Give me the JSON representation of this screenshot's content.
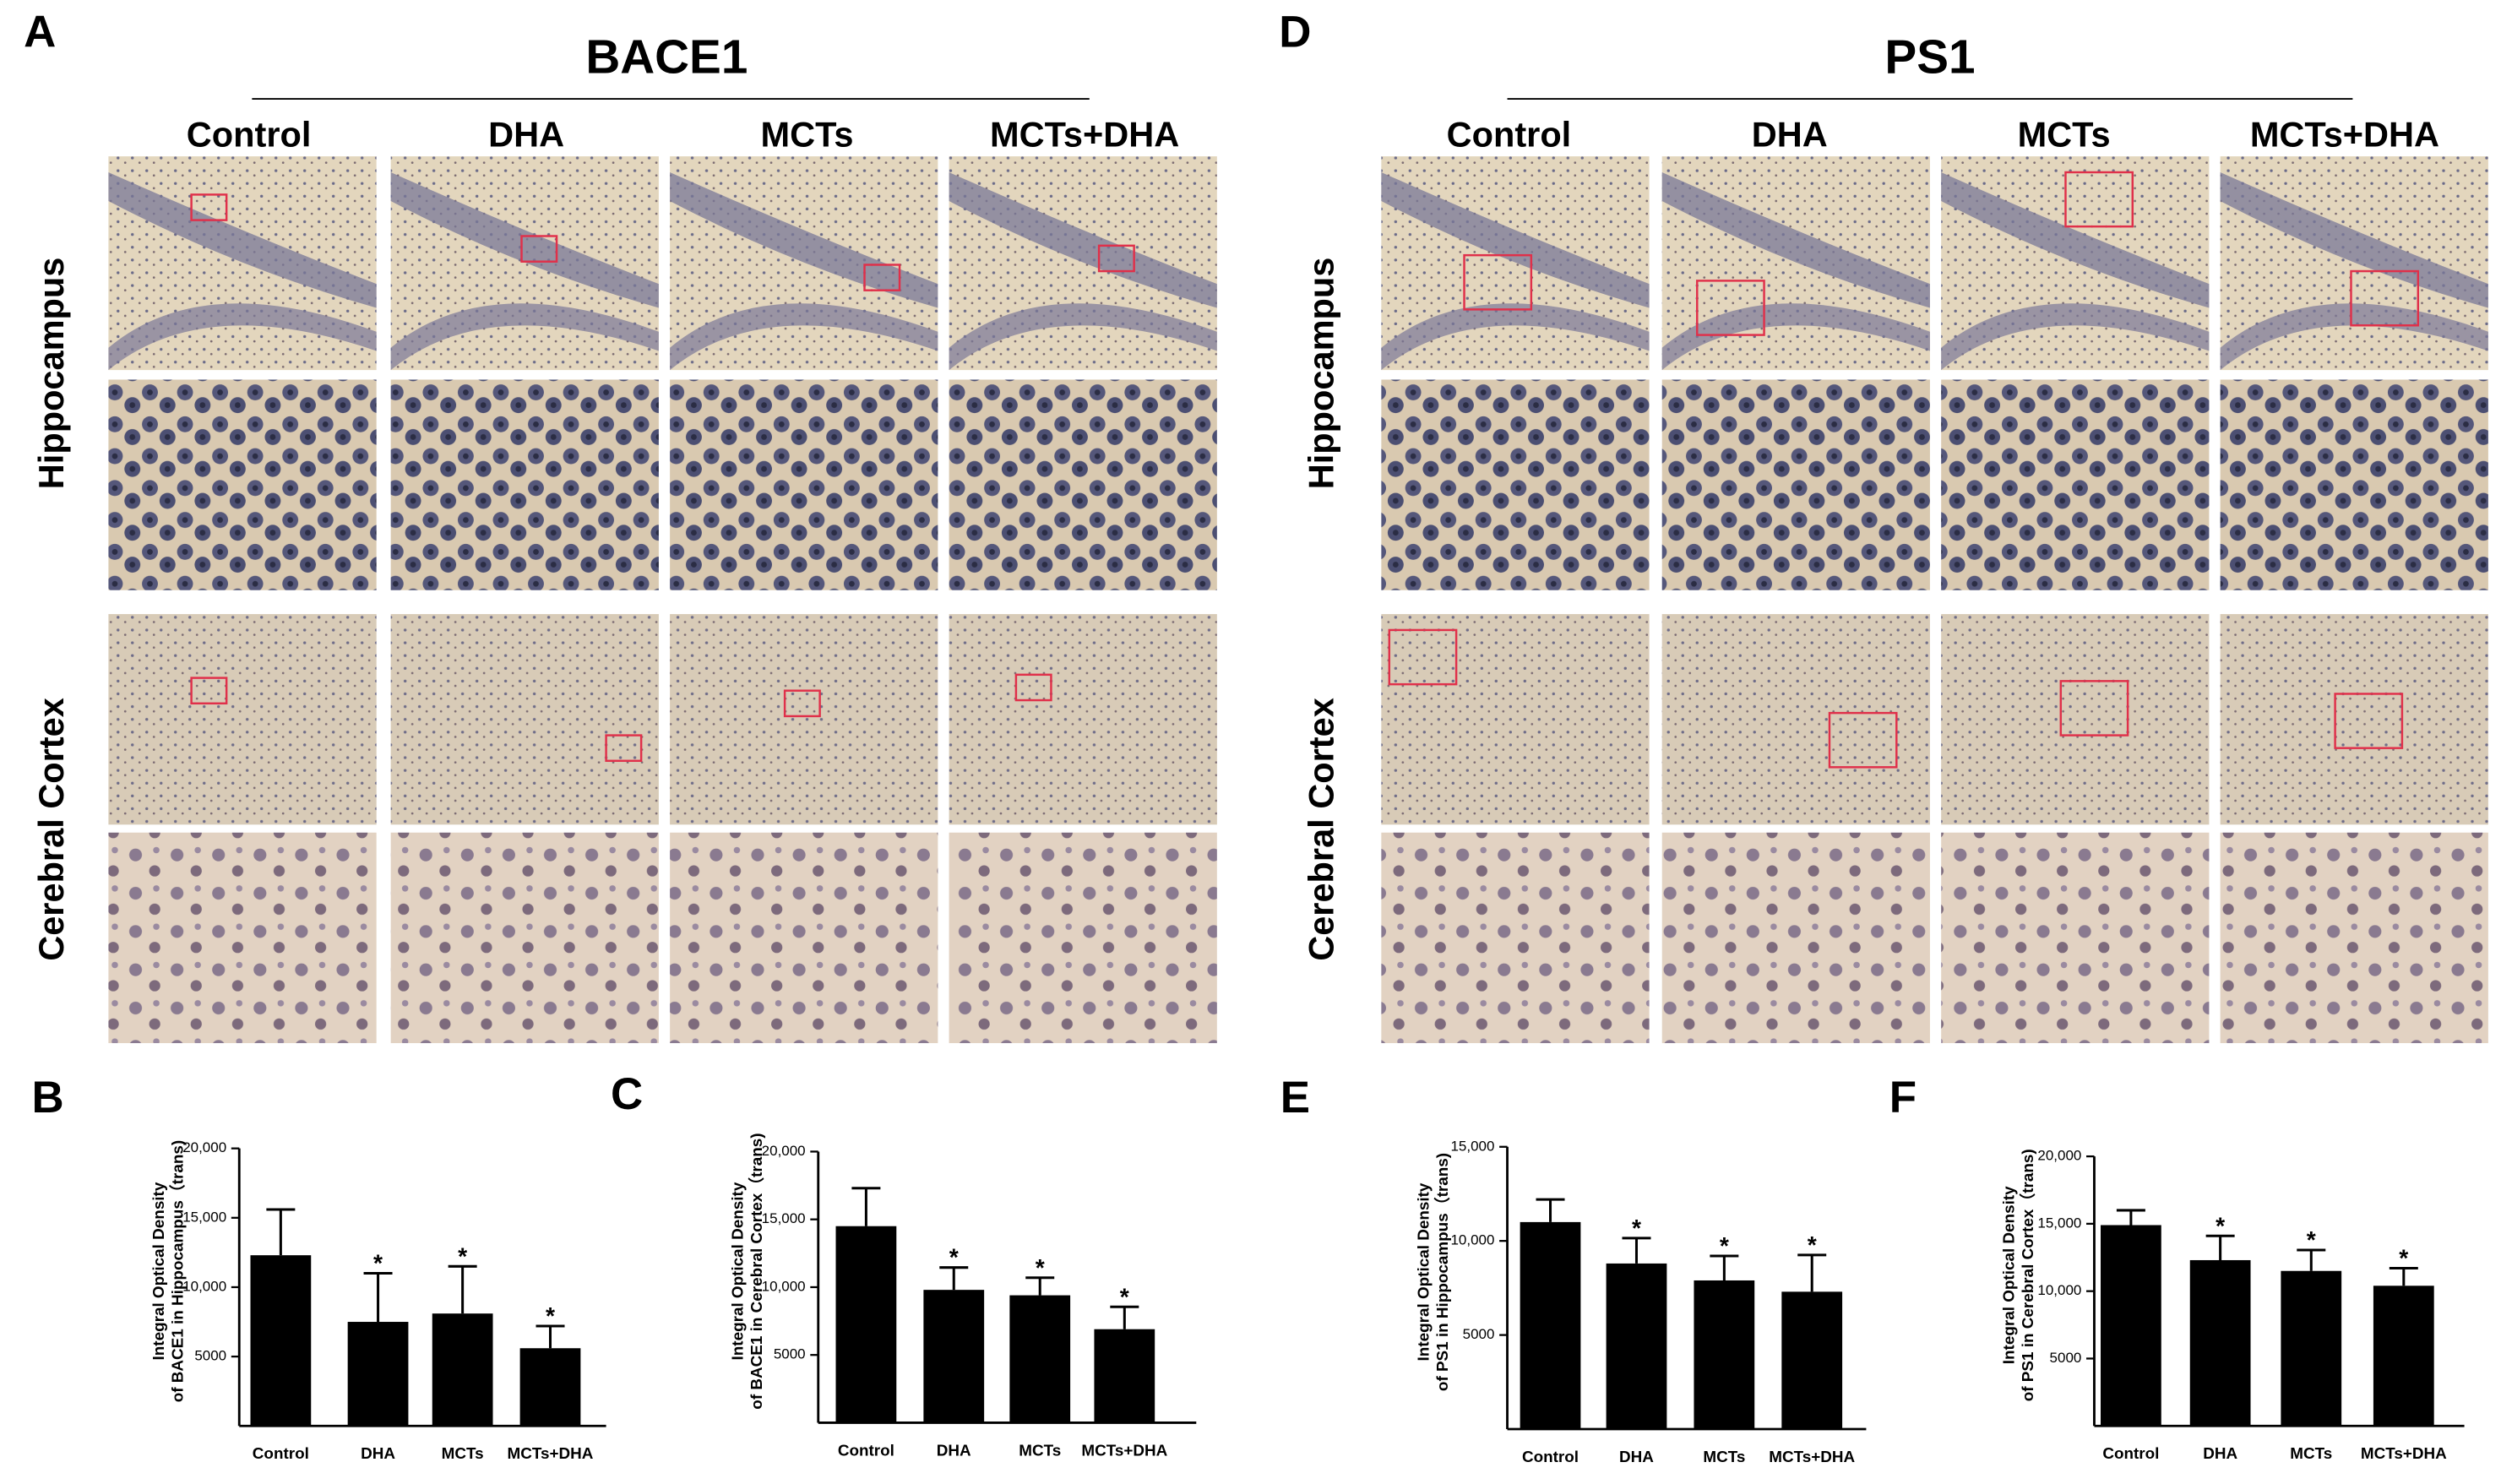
{
  "figure": {
    "panels": [
      {
        "letter": "A",
        "title": "BACE1",
        "columns": [
          "Control",
          "DHA",
          "MCTs",
          "MCTs+DHA"
        ],
        "rows": [
          "Hippocampus",
          "Cerebral Cortex"
        ]
      },
      {
        "letter": "D",
        "title": "PS1",
        "columns": [
          "Control",
          "DHA",
          "MCTs",
          "MCTs+DHA"
        ],
        "rows": [
          "Hippocampus",
          "Cerebral Cortex"
        ]
      }
    ]
  },
  "chart_data": [
    {
      "type": "bar",
      "panel": "B",
      "ylabel": [
        "Integral Optical Density",
        "of BACE1 in Hippocampus（trans)"
      ],
      "categories": [
        "Control",
        "DHA",
        "MCTs",
        "MCTs+DHA"
      ],
      "values": [
        12300,
        7500,
        8100,
        5600
      ],
      "errors": [
        3300,
        3500,
        3400,
        1600
      ],
      "significance": [
        null,
        "*",
        "*",
        "*"
      ],
      "color": "#000000",
      "ylim": [
        0,
        20000
      ],
      "yticks": [
        5000,
        {
          "value": 10000,
          "label": "10,000"
        },
        {
          "value": 15000,
          "label": "15,000"
        },
        {
          "value": 20000,
          "label": "20,000"
        }
      ]
    },
    {
      "type": "bar",
      "panel": "C",
      "ylabel": [
        "Integral Optical Density",
        "of BACE1 in Cerebral Cortex（trans)"
      ],
      "categories": [
        "Control",
        "DHA",
        "MCTs",
        "MCTs+DHA"
      ],
      "values": [
        14500,
        9800,
        9400,
        6900
      ],
      "errors": [
        2800,
        1650,
        1300,
        1650
      ],
      "significance": [
        null,
        "*",
        "*",
        "*"
      ],
      "color": "#000000",
      "ylim": [
        0,
        20000
      ],
      "yticks": [
        5000,
        {
          "value": 10000,
          "label": "10,000"
        },
        {
          "value": 15000,
          "label": "15,000"
        },
        {
          "value": 20000,
          "label": "20,000"
        }
      ]
    },
    {
      "type": "bar",
      "panel": "E",
      "ylabel": [
        "Integral Optical Density",
        "of PS1 in Hippocampus（trans)"
      ],
      "categories": [
        "Control",
        "DHA",
        "MCTs",
        "MCTs+DHA"
      ],
      "values": [
        11000,
        8800,
        7900,
        7300
      ],
      "errors": [
        1200,
        1350,
        1300,
        1950
      ],
      "significance": [
        null,
        "*",
        "*",
        "*"
      ],
      "color": "#000000",
      "ylim": [
        0,
        15000
      ],
      "yticks": [
        5000,
        {
          "value": 10000,
          "label": "10,000"
        },
        {
          "value": 15000,
          "label": "15,000"
        }
      ]
    },
    {
      "type": "bar",
      "panel": "F",
      "ylabel": [
        "Integral Optical Density",
        "of PS1 in Cerebral Cortex（trans)"
      ],
      "categories": [
        "Control",
        "DHA",
        "MCTs",
        "MCTs+DHA"
      ],
      "values": [
        14900,
        12300,
        11500,
        10400
      ],
      "errors": [
        1100,
        1800,
        1550,
        1300
      ],
      "significance": [
        null,
        "*",
        "*",
        "*"
      ],
      "color": "#000000",
      "ylim": [
        0,
        20000
      ],
      "yticks": [
        5000,
        {
          "value": 10000,
          "label": "10,000"
        },
        {
          "value": 15000,
          "label": "15,000"
        },
        {
          "value": 20000,
          "label": "20,000"
        }
      ]
    }
  ]
}
